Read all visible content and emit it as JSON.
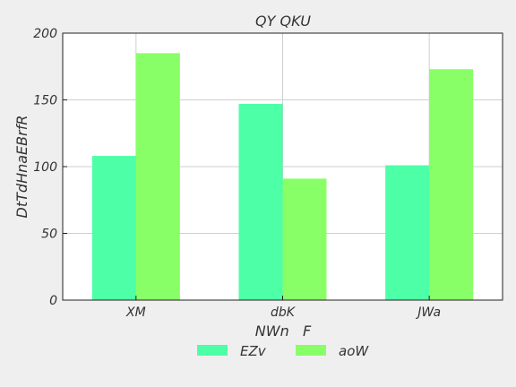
{
  "chart_data": {
    "type": "bar",
    "title": "QY QKU",
    "xlabel": "NWn   F",
    "ylabel": "DtTdHnaEBrfR",
    "categories": [
      "XM",
      "dbK",
      "JWa"
    ],
    "series": [
      {
        "name": "EZv",
        "values": [
          108,
          147,
          101
        ],
        "color": "#4dffa6"
      },
      {
        "name": "aoW",
        "values": [
          185,
          91,
          173
        ],
        "color": "#88ff66"
      }
    ],
    "ylim": [
      0,
      200
    ],
    "yticks": [
      0,
      50,
      100,
      150,
      200
    ],
    "grid": true,
    "legend_position": "bottom-center"
  }
}
